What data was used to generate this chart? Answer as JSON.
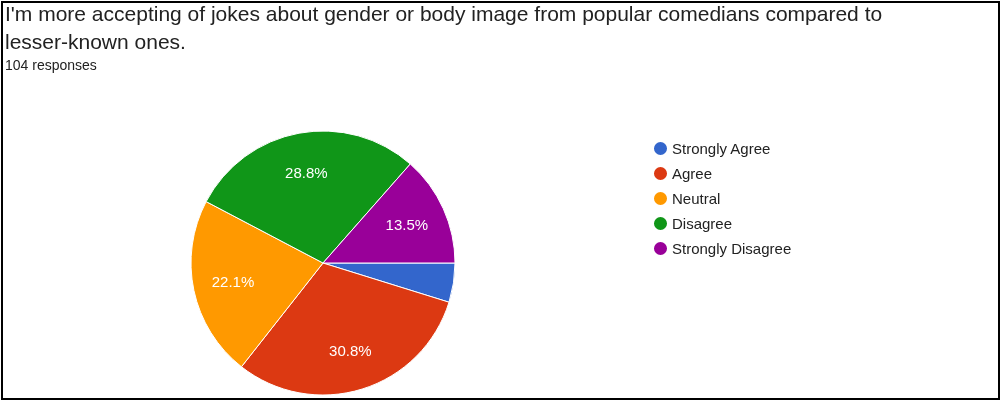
{
  "chart_data": {
    "type": "pie",
    "title": "I'm more accepting of jokes about gender or body image from popular comedians compared to lesser-known ones.",
    "subtitle": "104 responses",
    "categories": [
      "Strongly Agree",
      "Agree",
      "Neutral",
      "Disagree",
      "Strongly Disagree"
    ],
    "values": [
      4.8,
      30.8,
      22.1,
      28.8,
      13.5
    ],
    "colors": [
      "#3366cc",
      "#dc3912",
      "#ff9900",
      "#109618",
      "#990099"
    ],
    "value_labels": [
      null,
      "30.8%",
      "22.1%",
      "28.8%",
      "13.5%"
    ],
    "legend": "right"
  }
}
